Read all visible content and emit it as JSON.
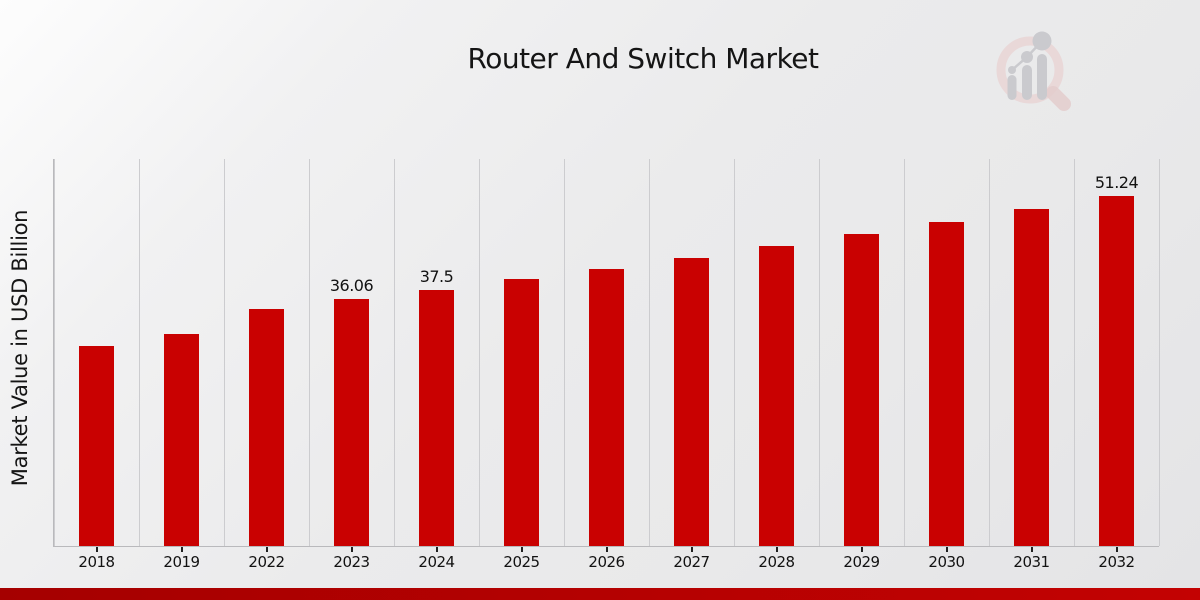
{
  "title": "Router And Switch Market",
  "y_axis_label": "Market Value in USD Billion",
  "colors": {
    "bar": "#c90101",
    "grid": "#cccccf",
    "axis": "#b9b9bc",
    "tick": "#222222",
    "text": "#151515",
    "bottom_band_left": "#a50000",
    "bottom_band_right": "#c30202",
    "logo_pink": "#e9d0d0",
    "logo_gray": "#c5c5ca"
  },
  "logo_name": "market-research-future-logo",
  "chart_data": {
    "type": "bar",
    "title": "Router And Switch Market",
    "xlabel": "",
    "ylabel": "Market Value in USD Billion",
    "categories": [
      "2018",
      "2019",
      "2022",
      "2023",
      "2024",
      "2025",
      "2026",
      "2027",
      "2028",
      "2029",
      "2030",
      "2031",
      "2032"
    ],
    "values": [
      29.2,
      31.0,
      34.68,
      36.06,
      37.5,
      38.99,
      40.54,
      42.16,
      43.84,
      45.58,
      47.4,
      49.28,
      51.24
    ],
    "data_labels": {
      "2023": "36.06",
      "2024": "37.5",
      "2032": "51.24"
    },
    "ylim": [
      0,
      56.6
    ],
    "grid": "vertical-only",
    "legend": "none",
    "bar_color": "#c90101"
  }
}
